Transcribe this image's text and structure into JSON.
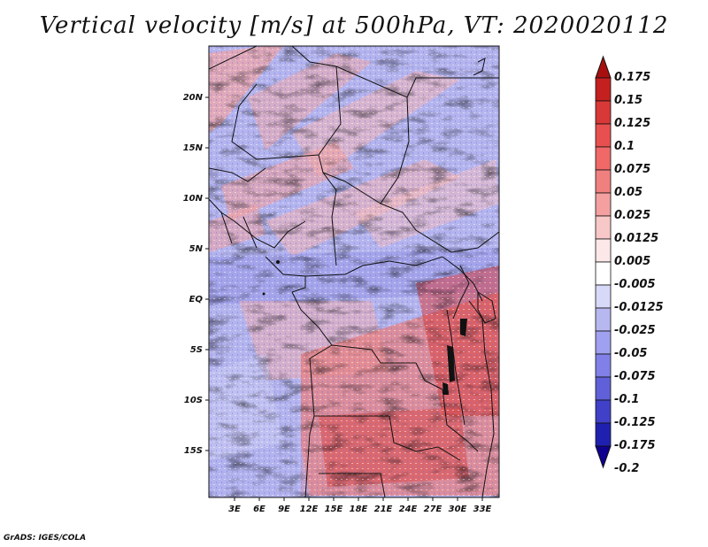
{
  "title": "Vertical velocity [m/s] at 500hPa, VT: 2020020112",
  "credit": "GrADS: IGES/COLA",
  "lat_ticks": [
    "20N",
    "15N",
    "10N",
    "5N",
    "EQ",
    "5S",
    "10S",
    "15S"
  ],
  "lon_ticks": [
    "3E",
    "6E",
    "9E",
    "12E",
    "15E",
    "18E",
    "21E",
    "24E",
    "27E",
    "30E",
    "33E"
  ],
  "colorbar": {
    "levels": [
      "0.175",
      "0.15",
      "0.125",
      "0.1",
      "0.075",
      "0.05",
      "0.025",
      "0.0125",
      "0.005",
      "-0.005",
      "-0.0125",
      "-0.025",
      "-0.05",
      "-0.075",
      "-0.1",
      "-0.125",
      "-0.175",
      "-0.2"
    ],
    "colors": [
      "#a81010",
      "#c42020",
      "#d83838",
      "#e85050",
      "#f06868",
      "#f08080",
      "#f4a0a0",
      "#f8c8c8",
      "#fce8e8",
      "#ffffff",
      "#d8d8f8",
      "#b8b8f0",
      "#a0a0f0",
      "#8080e8",
      "#6060d8",
      "#4040c8",
      "#2020b0",
      "#100090"
    ]
  }
}
